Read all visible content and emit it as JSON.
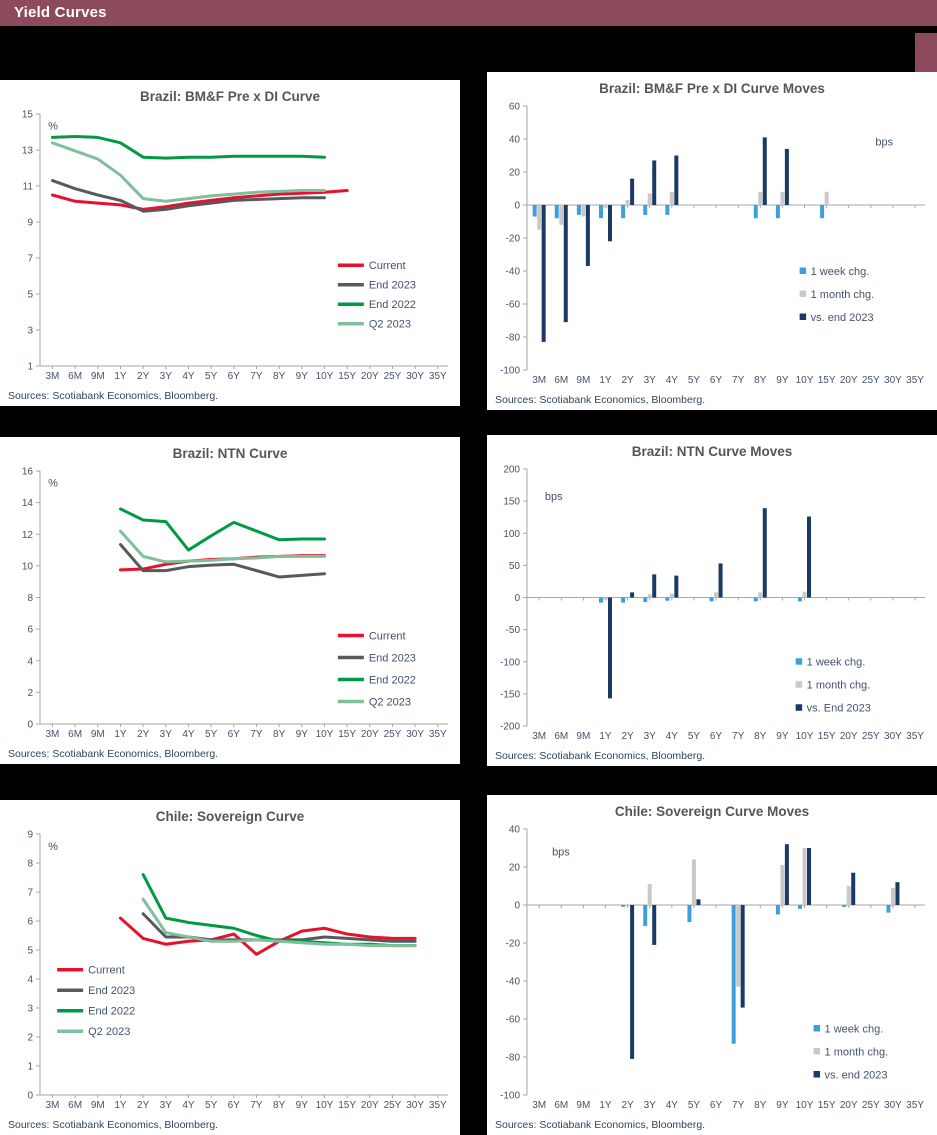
{
  "header": {
    "title": "Yield Curves"
  },
  "colors": {
    "header_bg": "#8d4a5d",
    "page_bg": "#000000",
    "panel_bg": "#ffffff",
    "current_red": "#e8112d",
    "end2023_gray": "#58595b",
    "end2022_green": "#009a44",
    "q2_2023_light_green": "#80bf9b",
    "week_blue": "#3fa0d9",
    "month_gray": "#c9c9c9",
    "navy": "#1a3a66"
  },
  "chart_data": [
    {
      "type": "line",
      "title": "Brazil: BM&F Pre x DI Curve",
      "unit": "%",
      "unit_pos": [
        0.02,
        0.03
      ],
      "ylim": [
        1,
        15
      ],
      "ystep": 2,
      "legend": {
        "fx": 0.73,
        "fy": 0.6,
        "spacing": 19.5
      },
      "sources": "Sources: Scotiabank Economics, Bloomberg.",
      "categories": [
        "3M",
        "6M",
        "9M",
        "1Y",
        "2Y",
        "3Y",
        "4Y",
        "5Y",
        "6Y",
        "7Y",
        "8Y",
        "9Y",
        "10Y",
        "15Y",
        "20Y",
        "25Y",
        "30Y",
        "35Y"
      ],
      "series": [
        {
          "name": "Current",
          "color": "#e8112d",
          "values": [
            10.5,
            10.15,
            10.05,
            9.95,
            9.7,
            9.85,
            10.05,
            10.2,
            10.35,
            10.45,
            10.55,
            10.6,
            10.65,
            10.75,
            null,
            null,
            null,
            null
          ]
        },
        {
          "name": "End 2023",
          "color": "#58595b",
          "values": [
            11.3,
            10.85,
            10.5,
            10.2,
            9.6,
            9.7,
            9.9,
            10.05,
            10.2,
            10.25,
            10.3,
            10.35,
            10.35,
            null,
            null,
            null,
            null,
            null
          ]
        },
        {
          "name": "End 2022",
          "color": "#009a44",
          "values": [
            13.7,
            13.75,
            13.7,
            13.4,
            12.6,
            12.55,
            12.6,
            12.6,
            12.65,
            12.65,
            12.65,
            12.65,
            12.6,
            null,
            null,
            null,
            null,
            null
          ]
        },
        {
          "name": "Q2 2023",
          "color": "#80bf9b",
          "values": [
            13.4,
            12.95,
            12.5,
            11.6,
            10.3,
            10.15,
            10.3,
            10.45,
            10.55,
            10.65,
            10.7,
            10.75,
            10.75,
            null,
            null,
            null,
            null,
            null
          ]
        }
      ]
    },
    {
      "type": "bar",
      "title": "Brazil: BM&F Pre x DI Curve Moves",
      "unit": "bps",
      "unit_pos": [
        0.92,
        0.12
      ],
      "ylim": [
        -100,
        60
      ],
      "ystep": 20,
      "legend": {
        "fx": 0.685,
        "fy": 0.625,
        "spacing": 23
      },
      "sources": "Sources: Scotiabank Economics, Bloomberg.",
      "categories": [
        "3M",
        "6M",
        "9M",
        "1Y",
        "2Y",
        "3Y",
        "4Y",
        "5Y",
        "6Y",
        "7Y",
        "8Y",
        "9Y",
        "10Y",
        "15Y",
        "20Y",
        "25Y",
        "30Y",
        "35Y"
      ],
      "series": [
        {
          "name": "1 week chg.",
          "color": "#3fa0d9",
          "values": [
            -7,
            -8,
            -6,
            -8,
            -8,
            -6,
            -6,
            null,
            null,
            null,
            -8,
            -8,
            null,
            -8,
            null,
            null,
            null,
            null
          ]
        },
        {
          "name": "1 month chg.",
          "color": "#c9c9c9",
          "values": [
            -15,
            -12,
            -7,
            -2,
            3,
            7,
            8,
            null,
            null,
            null,
            8,
            8,
            null,
            8,
            null,
            null,
            null,
            null
          ]
        },
        {
          "name": "vs. end 2023",
          "color": "#1a3a66",
          "values": [
            -83,
            -71,
            -37,
            -22,
            16,
            27,
            30,
            null,
            null,
            null,
            41,
            34,
            null,
            null,
            null,
            null,
            null,
            null
          ]
        }
      ]
    },
    {
      "type": "line",
      "title": "Brazil: NTN Curve",
      "unit": "%",
      "unit_pos": [
        0.02,
        0.03
      ],
      "ylim": [
        0,
        16
      ],
      "ystep": 2,
      "legend": {
        "fx": 0.73,
        "fy": 0.65,
        "spacing": 22
      },
      "sources": "Sources: Scotiabank Economics, Bloomberg.",
      "categories": [
        "3M",
        "6M",
        "9M",
        "1Y",
        "2Y",
        "3Y",
        "4Y",
        "5Y",
        "6Y",
        "7Y",
        "8Y",
        "9Y",
        "10Y",
        "15Y",
        "20Y",
        "25Y",
        "30Y",
        "35Y"
      ],
      "series": [
        {
          "name": "Current",
          "color": "#e8112d",
          "values": [
            null,
            null,
            null,
            9.75,
            9.8,
            10.1,
            10.3,
            10.4,
            10.45,
            10.55,
            10.6,
            10.65,
            10.65,
            null,
            null,
            null,
            null,
            null
          ]
        },
        {
          "name": "End 2023",
          "color": "#58595b",
          "values": [
            null,
            null,
            null,
            11.35,
            9.7,
            9.7,
            9.95,
            10.05,
            10.1,
            9.7,
            9.3,
            9.4,
            9.5,
            null,
            null,
            null,
            null,
            null
          ]
        },
        {
          "name": "End 2022",
          "color": "#009a44",
          "values": [
            null,
            null,
            null,
            13.6,
            12.9,
            12.8,
            11.0,
            11.9,
            12.75,
            12.2,
            11.65,
            11.7,
            11.7,
            null,
            null,
            null,
            null,
            null
          ]
        },
        {
          "name": "Q2 2023",
          "color": "#80bf9b",
          "values": [
            null,
            null,
            null,
            12.2,
            10.6,
            10.25,
            10.3,
            10.35,
            10.45,
            10.5,
            10.6,
            10.6,
            10.6,
            null,
            null,
            null,
            null,
            null
          ]
        }
      ]
    },
    {
      "type": "bar",
      "title": "Brazil: NTN Curve Moves",
      "unit": "bps",
      "unit_pos": [
        0.045,
        0.09
      ],
      "ylim": [
        -200,
        200
      ],
      "ystep": 50,
      "legend": {
        "fx": 0.675,
        "fy": 0.75,
        "spacing": 23
      },
      "sources": "Sources: Scotiabank Economics, Bloomberg.",
      "categories": [
        "3M",
        "6M",
        "9M",
        "1Y",
        "2Y",
        "3Y",
        "4Y",
        "5Y",
        "6Y",
        "7Y",
        "8Y",
        "9Y",
        "10Y",
        "15Y",
        "20Y",
        "25Y",
        "30Y",
        "35Y"
      ],
      "series": [
        {
          "name": "1 week chg.",
          "color": "#3fa0d9",
          "values": [
            null,
            null,
            null,
            -8,
            -8,
            -7,
            -5,
            null,
            -6,
            null,
            -6,
            null,
            -6,
            null,
            null,
            null,
            null,
            null
          ]
        },
        {
          "name": "1 month chg.",
          "color": "#c9c9c9",
          "values": [
            null,
            null,
            null,
            -4,
            null,
            5,
            6,
            null,
            8,
            null,
            8,
            null,
            9,
            null,
            null,
            null,
            null,
            null
          ]
        },
        {
          "name": "vs. End 2023",
          "color": "#1a3a66",
          "values": [
            null,
            null,
            null,
            -157,
            8,
            36,
            34,
            null,
            53,
            null,
            139,
            null,
            126,
            null,
            null,
            null,
            null,
            null
          ]
        }
      ]
    },
    {
      "type": "line",
      "title": "Chile: Sovereign Curve",
      "unit": "%",
      "unit_pos": [
        0.02,
        0.03
      ],
      "ylim": [
        0,
        9
      ],
      "ystep": 1,
      "legend": {
        "fx": 0.042,
        "fy": 0.52,
        "spacing": 20.5
      },
      "sources": "Sources: Scotiabank Economics, Bloomberg.",
      "categories": [
        "3M",
        "6M",
        "9M",
        "1Y",
        "2Y",
        "3Y",
        "4Y",
        "5Y",
        "6Y",
        "7Y",
        "8Y",
        "9Y",
        "10Y",
        "15Y",
        "20Y",
        "25Y",
        "30Y",
        "35Y"
      ],
      "series": [
        {
          "name": "Current",
          "color": "#e8112d",
          "values": [
            null,
            null,
            null,
            6.1,
            5.4,
            5.2,
            5.3,
            5.35,
            5.55,
            4.85,
            5.3,
            5.65,
            5.75,
            5.55,
            5.45,
            5.4,
            5.4,
            null
          ]
        },
        {
          "name": "End 2023",
          "color": "#58595b",
          "values": [
            null,
            null,
            null,
            null,
            6.25,
            5.45,
            5.45,
            5.35,
            5.35,
            5.35,
            5.35,
            5.35,
            5.45,
            5.4,
            5.35,
            5.3,
            5.3,
            null
          ]
        },
        {
          "name": "End 2022",
          "color": "#009a44",
          "values": [
            null,
            null,
            null,
            null,
            7.6,
            6.1,
            5.95,
            5.85,
            5.75,
            5.5,
            5.3,
            5.3,
            5.25,
            5.2,
            5.2,
            5.15,
            5.15,
            null
          ]
        },
        {
          "name": "Q2 2023",
          "color": "#80bf9b",
          "values": [
            null,
            null,
            null,
            null,
            6.75,
            5.6,
            5.45,
            5.3,
            5.3,
            5.35,
            5.3,
            5.25,
            5.2,
            5.2,
            5.15,
            5.15,
            5.15,
            null
          ]
        }
      ]
    },
    {
      "type": "bar",
      "title": "Chile: Sovereign Curve Moves",
      "unit": "bps",
      "unit_pos": [
        0.063,
        0.07
      ],
      "ylim": [
        -100,
        40
      ],
      "ystep": 20,
      "legend": {
        "fx": 0.72,
        "fy": 0.75,
        "spacing": 23
      },
      "sources": "Sources: Scotiabank Economics, Bloomberg.",
      "categories": [
        "3M",
        "6M",
        "9M",
        "1Y",
        "2Y",
        "3Y",
        "4Y",
        "5Y",
        "6Y",
        "7Y",
        "8Y",
        "9Y",
        "10Y",
        "15Y",
        "20Y",
        "25Y",
        "30Y",
        "35Y"
      ],
      "series": [
        {
          "name": "1 week chg.",
          "color": "#3fa0d9",
          "values": [
            null,
            null,
            null,
            null,
            -1,
            -11,
            null,
            -9,
            null,
            -73,
            null,
            -5,
            -2,
            null,
            -1,
            null,
            -4,
            null
          ]
        },
        {
          "name": "1 month chg.",
          "color": "#c9c9c9",
          "values": [
            null,
            null,
            null,
            null,
            null,
            11,
            null,
            24,
            null,
            -43,
            null,
            21,
            30,
            null,
            10,
            null,
            9,
            null
          ]
        },
        {
          "name": "vs. end 2023",
          "color": "#1a3a66",
          "values": [
            null,
            null,
            null,
            null,
            -81,
            -21,
            null,
            3,
            null,
            -54,
            null,
            32,
            30,
            null,
            17,
            null,
            12,
            null
          ]
        }
      ]
    }
  ]
}
